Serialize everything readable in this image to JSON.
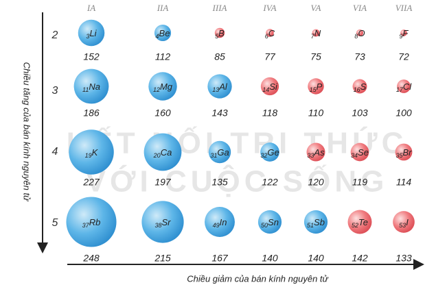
{
  "chart_data": {
    "type": "bubble",
    "y_label": "Chiều tăng của bán kính nguyên tử",
    "x_label": "Chiều giảm của bán kính nguyên tử",
    "watermark": [
      "KẾT NỐI TRI THỨC",
      "VỚI CUỘC SỐNG"
    ],
    "categories": [
      "IA",
      "IIA",
      "IIIA",
      "IVA",
      "VA",
      "VIA",
      "VIIA"
    ],
    "periods": [
      "2",
      "3",
      "4",
      "5"
    ],
    "elements": [
      [
        {
          "z": 3,
          "symbol": "Li",
          "value": 152,
          "color": "blue"
        },
        {
          "z": 4,
          "symbol": "Be",
          "value": 112,
          "color": "blue"
        },
        {
          "z": 5,
          "symbol": "B",
          "value": 85,
          "color": "red"
        },
        {
          "z": 6,
          "symbol": "C",
          "value": 77,
          "color": "red"
        },
        {
          "z": 7,
          "symbol": "N",
          "value": 75,
          "color": "red"
        },
        {
          "z": 8,
          "symbol": "O",
          "value": 73,
          "color": "red"
        },
        {
          "z": 9,
          "symbol": "F",
          "value": 72,
          "color": "red"
        }
      ],
      [
        {
          "z": 11,
          "symbol": "Na",
          "value": 186,
          "color": "blue"
        },
        {
          "z": 12,
          "symbol": "Mg",
          "value": 160,
          "color": "blue"
        },
        {
          "z": 13,
          "symbol": "Al",
          "value": 143,
          "color": "blue"
        },
        {
          "z": 14,
          "symbol": "Si",
          "value": 118,
          "color": "red"
        },
        {
          "z": 15,
          "symbol": "P",
          "value": 110,
          "color": "red"
        },
        {
          "z": 16,
          "symbol": "S",
          "value": 103,
          "color": "red"
        },
        {
          "z": 17,
          "symbol": "Cl",
          "value": 100,
          "color": "red"
        }
      ],
      [
        {
          "z": 19,
          "symbol": "K",
          "value": 227,
          "color": "blue"
        },
        {
          "z": 20,
          "symbol": "Ca",
          "value": 197,
          "color": "blue"
        },
        {
          "z": 31,
          "symbol": "Ga",
          "value": 135,
          "color": "blue"
        },
        {
          "z": 32,
          "symbol": "Ge",
          "value": 122,
          "color": "blue"
        },
        {
          "z": 33,
          "symbol": "As",
          "value": 120,
          "color": "red"
        },
        {
          "z": 34,
          "symbol": "Se",
          "value": 119,
          "color": "red"
        },
        {
          "z": 35,
          "symbol": "Br",
          "value": 114,
          "color": "red"
        }
      ],
      [
        {
          "z": 37,
          "symbol": "Rb",
          "value": 248,
          "color": "blue"
        },
        {
          "z": 38,
          "symbol": "Sr",
          "value": 215,
          "color": "blue"
        },
        {
          "z": 49,
          "symbol": "In",
          "value": 167,
          "color": "blue"
        },
        {
          "z": 50,
          "symbol": "Sn",
          "value": 140,
          "color": "blue"
        },
        {
          "z": 51,
          "symbol": "Sb",
          "value": 140,
          "color": "blue"
        },
        {
          "z": 52,
          "symbol": "Te",
          "value": 142,
          "color": "red"
        },
        {
          "z": 53,
          "symbol": "I",
          "value": 133,
          "color": "red"
        }
      ]
    ]
  }
}
